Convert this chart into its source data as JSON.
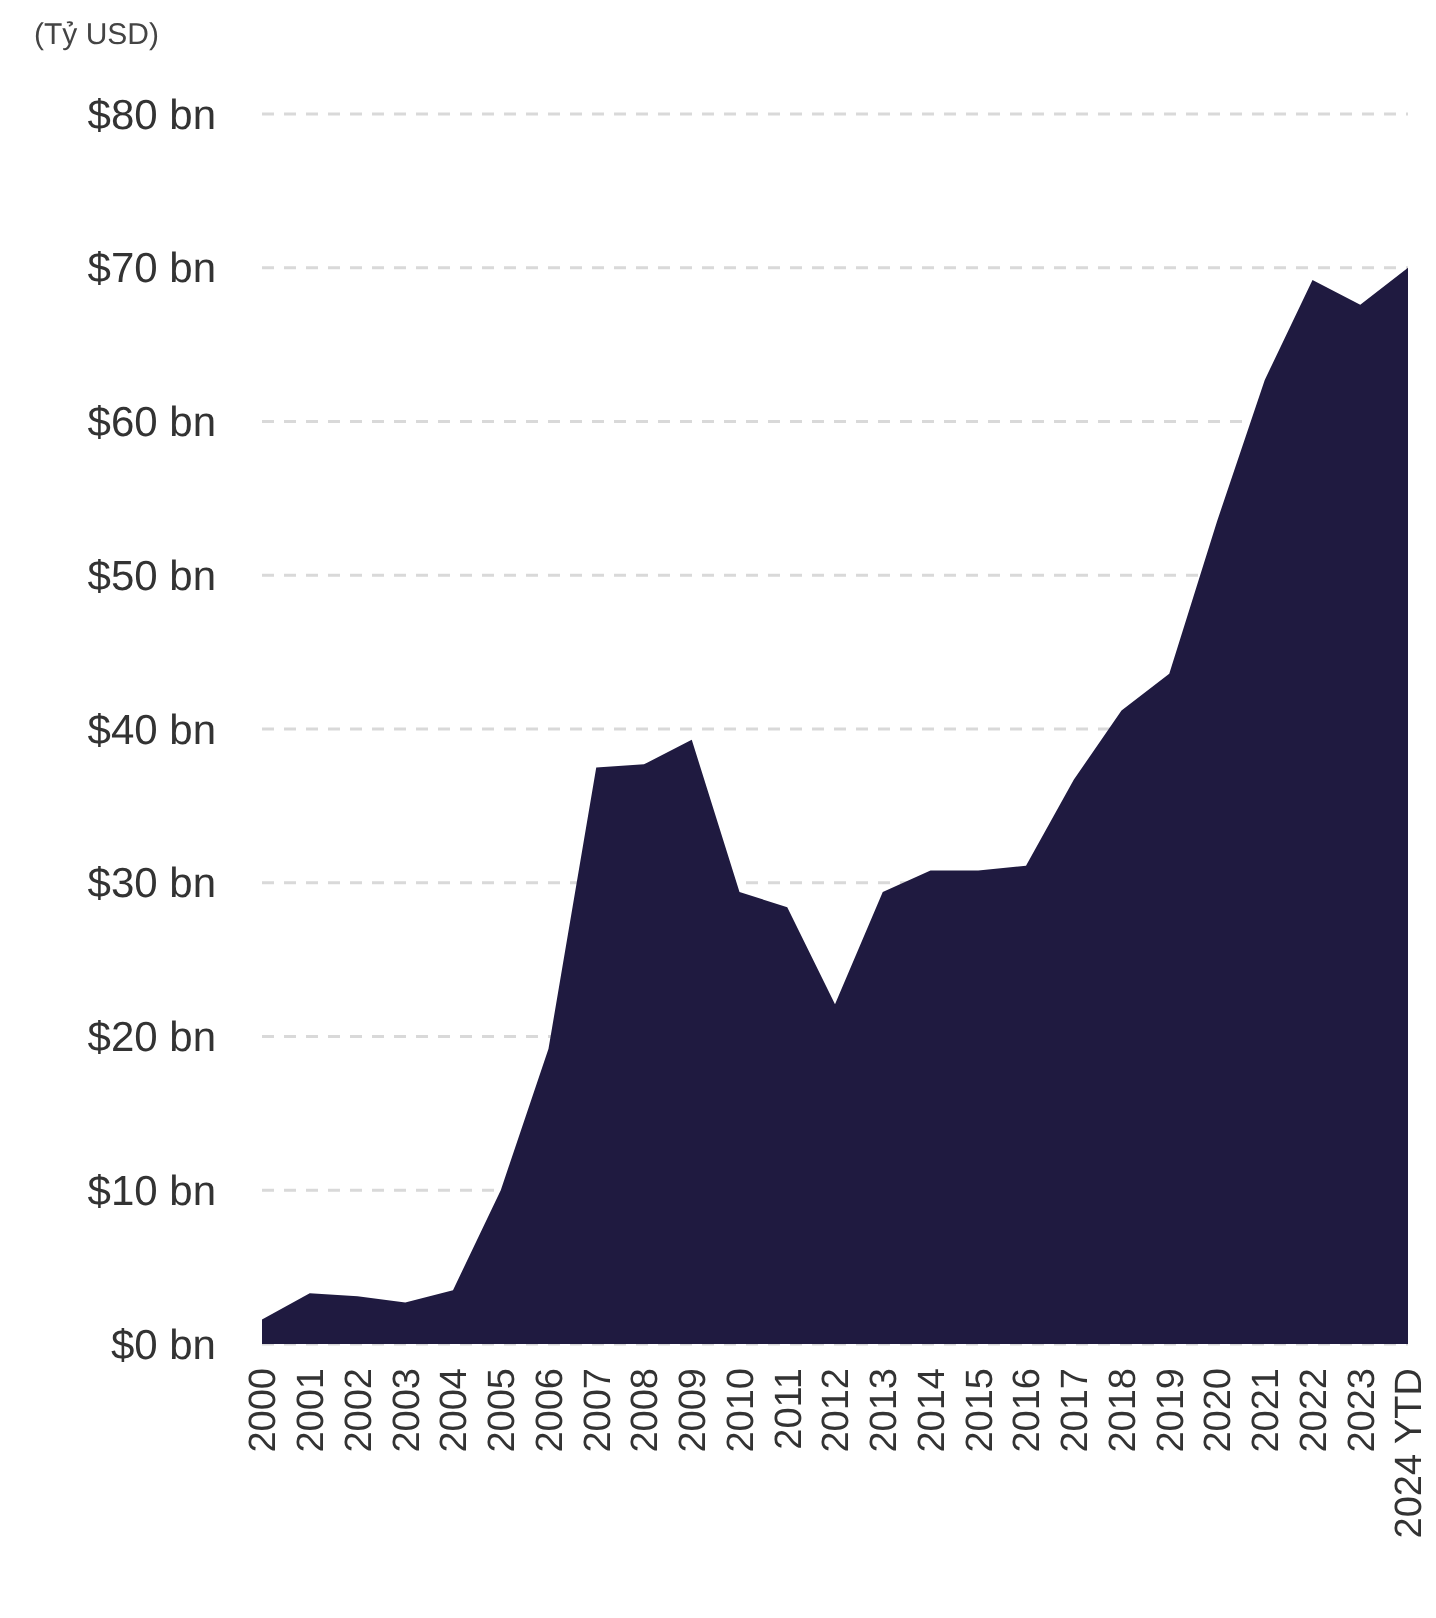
{
  "chart_data": {
    "type": "area",
    "ylabel": "(Tỷ USD)",
    "categories": [
      "2000",
      "2001",
      "2002",
      "2003",
      "2004",
      "2005",
      "2006",
      "2007",
      "2008",
      "2009",
      "2010",
      "2011",
      "2012",
      "2013",
      "2014",
      "2015",
      "2016",
      "2017",
      "2018",
      "2019",
      "2020",
      "2021",
      "2022",
      "2023",
      "2024 YTD"
    ],
    "series": [
      {
        "color": "#1f1a40",
        "values": [
          1.6,
          3.3,
          3.1,
          2.7,
          3.5,
          10,
          19.2,
          37.5,
          37.7,
          39.3,
          29.4,
          28.4,
          22.1,
          29.4,
          30.8,
          30.8,
          31.1,
          36.7,
          41.2,
          43.6,
          53.5,
          62.7,
          69.2,
          67.6,
          70
        ]
      }
    ],
    "ylim": [
      0,
      80
    ],
    "yticks": [
      {
        "value": 0,
        "label": "$0 bn"
      },
      {
        "value": 10,
        "label": "$10 bn"
      },
      {
        "value": 20,
        "label": "$20 bn"
      },
      {
        "value": 30,
        "label": "$30 bn"
      },
      {
        "value": 40,
        "label": "$40 bn"
      },
      {
        "value": 50,
        "label": "$50 bn"
      },
      {
        "value": 60,
        "label": "$60 bn"
      },
      {
        "value": 70,
        "label": "$70 bn"
      },
      {
        "value": 80,
        "label": "$80 bn"
      }
    ],
    "grid": "y"
  }
}
